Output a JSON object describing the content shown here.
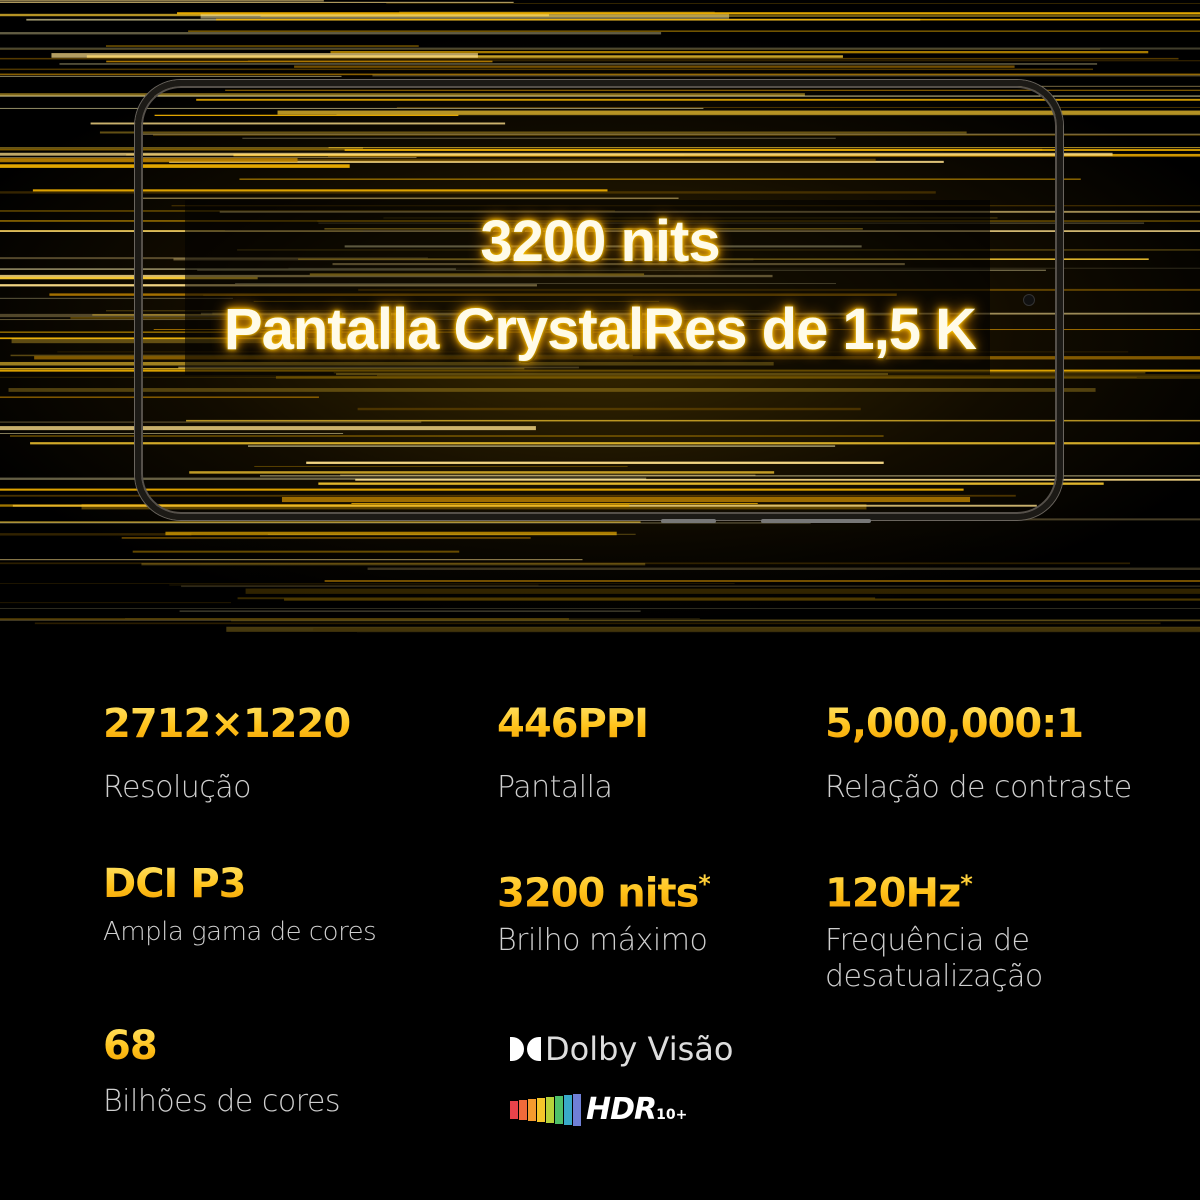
{
  "hero": {
    "headline_line1": "3200 nits",
    "headline_line2": "Pantalla CrystalRes de 1,5 K",
    "accent_color": "#ffc21a"
  },
  "specs": [
    {
      "value": "2712×1220",
      "label": "Resolução"
    },
    {
      "value": "446PPI",
      "label": "Pantalla"
    },
    {
      "value": "5,000,000:1",
      "label": "Relação de contraste"
    },
    {
      "value": "DCI P3",
      "label": "Ampla gama de cores"
    },
    {
      "value": "3200 nits",
      "mark": "*",
      "label": "Brilho máximo"
    },
    {
      "value": "120Hz",
      "mark": "*",
      "label": "Frequência de desatualização"
    },
    {
      "value": "68",
      "label": "Bilhões de cores"
    }
  ],
  "badges": {
    "dolby": {
      "icon": "dolby-double-d-icon",
      "text": "Dolby Visão"
    },
    "hdr": {
      "icon": "hdr-rainbow-icon",
      "text": "HDR",
      "sub": "10+"
    }
  }
}
